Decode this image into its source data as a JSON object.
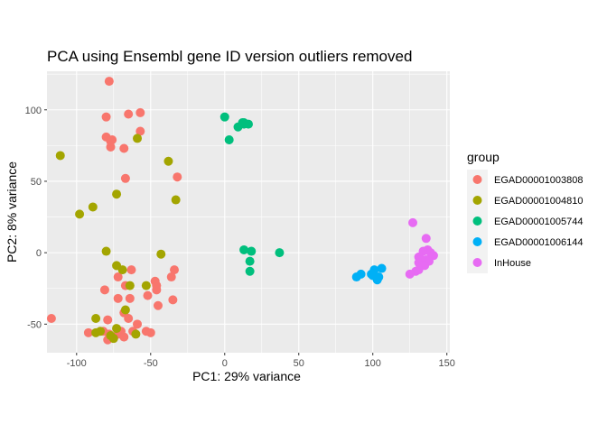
{
  "chart_data": {
    "type": "scatter",
    "title": "PCA using Ensembl gene ID version outliers removed",
    "xlabel": "PC1: 29% variance",
    "ylabel": "PC2: 8% variance",
    "xlim": [
      -120,
      152
    ],
    "ylim": [
      -70,
      127
    ],
    "xticks": [
      -100,
      -50,
      0,
      50,
      100,
      150
    ],
    "yticks": [
      -50,
      0,
      50,
      100
    ],
    "grid": true,
    "legend_position": "right",
    "legend_title": "group",
    "series": [
      {
        "name": "EGAD00001003808",
        "color": "#F8766D",
        "points": [
          [
            -78,
            120
          ],
          [
            -80,
            95
          ],
          [
            -65,
            97
          ],
          [
            -57,
            98
          ],
          [
            -80,
            81
          ],
          [
            -76,
            79
          ],
          [
            -77,
            78
          ],
          [
            -77,
            74
          ],
          [
            -68,
            73
          ],
          [
            -57,
            85
          ],
          [
            -67,
            52
          ],
          [
            -32,
            53
          ],
          [
            -63,
            -12
          ],
          [
            -72,
            -17
          ],
          [
            -47,
            -20
          ],
          [
            -34,
            -12
          ],
          [
            -46,
            -23
          ],
          [
            -36,
            -17
          ],
          [
            -81,
            -26
          ],
          [
            -46,
            -26
          ],
          [
            -67,
            -23
          ],
          [
            -72,
            -32
          ],
          [
            -64,
            -32
          ],
          [
            -52,
            -30
          ],
          [
            -35,
            -33
          ],
          [
            -45,
            -37
          ],
          [
            -68,
            -42
          ],
          [
            -65,
            -46
          ],
          [
            -79,
            -47
          ],
          [
            -59,
            -50
          ],
          [
            -117,
            -46
          ],
          [
            -72,
            -57
          ],
          [
            -70,
            -55
          ],
          [
            -62,
            -55
          ],
          [
            -53,
            -55
          ],
          [
            -50,
            -56
          ],
          [
            -92,
            -56
          ],
          [
            -82,
            -55
          ],
          [
            -78,
            -57
          ],
          [
            -79,
            -61
          ],
          [
            -68,
            -59
          ]
        ]
      },
      {
        "name": "EGAD00001004810",
        "color": "#A3A500",
        "points": [
          [
            -111,
            68
          ],
          [
            -59,
            80
          ],
          [
            -38,
            64
          ],
          [
            -73,
            41
          ],
          [
            -89,
            32
          ],
          [
            -33,
            37
          ],
          [
            -98,
            27
          ],
          [
            -80,
            1
          ],
          [
            -43,
            -1
          ],
          [
            -73,
            -9
          ],
          [
            -69,
            -12
          ],
          [
            -53,
            -23
          ],
          [
            -64,
            -23
          ],
          [
            -67,
            -40
          ],
          [
            -87,
            -46
          ],
          [
            -84,
            -55
          ],
          [
            -73,
            -53
          ],
          [
            -87,
            -56
          ],
          [
            -77,
            -58
          ],
          [
            -75,
            -60
          ],
          [
            -60,
            -57
          ]
        ]
      },
      {
        "name": "EGAD00001005744",
        "color": "#00BF7D",
        "points": [
          [
            0,
            95
          ],
          [
            12,
            91
          ],
          [
            13,
            91
          ],
          [
            13,
            90
          ],
          [
            16,
            90
          ],
          [
            9,
            88
          ],
          [
            3,
            79
          ],
          [
            13,
            2
          ],
          [
            18,
            1
          ],
          [
            37,
            0
          ],
          [
            17,
            -6
          ],
          [
            17,
            -13
          ]
        ]
      },
      {
        "name": "EGAD00001006144",
        "color": "#00B0F6",
        "points": [
          [
            89,
            -17
          ],
          [
            92,
            -15
          ],
          [
            101,
            -12
          ],
          [
            106,
            -11
          ],
          [
            99,
            -15
          ],
          [
            104,
            -17
          ],
          [
            103,
            -19
          ],
          [
            100,
            -16
          ]
        ]
      },
      {
        "name": "InHouse",
        "color": "#E76BF3",
        "points": [
          [
            127,
            21
          ],
          [
            136,
            10
          ],
          [
            137,
            2
          ],
          [
            134,
            1
          ],
          [
            139,
            0
          ],
          [
            141,
            -2
          ],
          [
            131,
            -3
          ],
          [
            133,
            -5
          ],
          [
            136,
            -5
          ],
          [
            138,
            -6
          ],
          [
            131,
            -7
          ],
          [
            133,
            -9
          ],
          [
            135,
            -9
          ],
          [
            129,
            -13
          ],
          [
            125,
            -15
          ],
          [
            131,
            -12
          ]
        ]
      }
    ]
  }
}
